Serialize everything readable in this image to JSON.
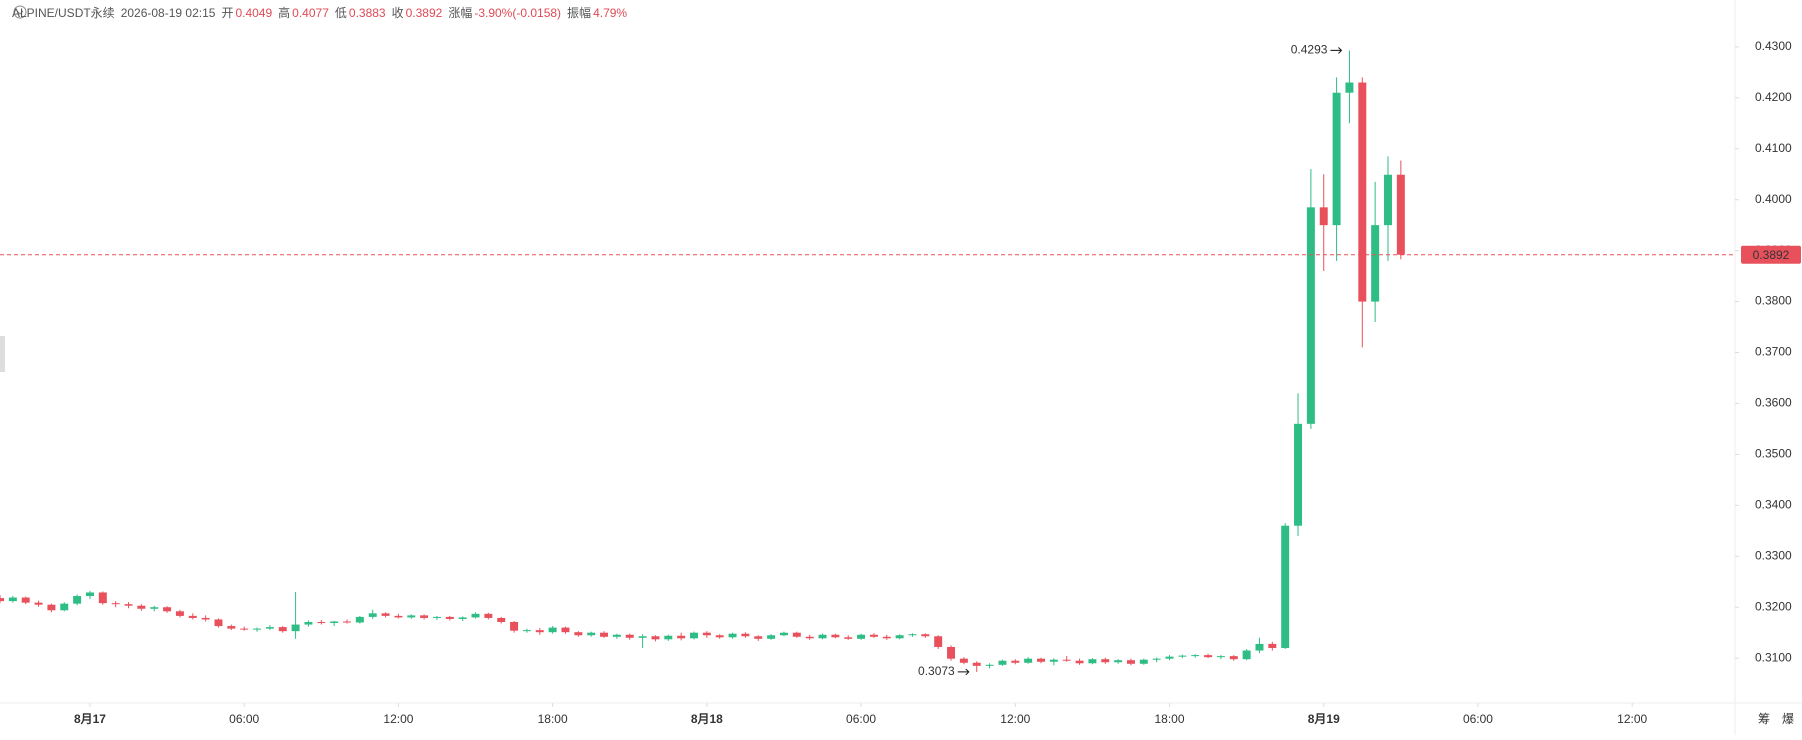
{
  "header": {
    "symbol": "ALPINE/USDT永续",
    "time": "2026-08-19 02:15",
    "fields": [
      {
        "key": "开",
        "value": "0.4049"
      },
      {
        "key": "高",
        "value": "0.4077"
      },
      {
        "key": "低",
        "value": "0.3883"
      },
      {
        "key": "收",
        "value": "0.3892"
      },
      {
        "key": "涨幅",
        "value": "-3.90%(-0.0158)"
      },
      {
        "key": "振幅",
        "value": "4.79%"
      }
    ]
  },
  "chart_data": {
    "type": "candlestick",
    "up_color": "#2ebd85",
    "down_color": "#e8505b",
    "xlim": [
      0,
      135
    ],
    "xticks": [
      {
        "value": 7,
        "label": "8月17"
      },
      {
        "value": 19,
        "label": "06:00"
      },
      {
        "value": 31,
        "label": "12:00"
      },
      {
        "value": 43,
        "label": "18:00"
      },
      {
        "value": 55,
        "label": "8月18"
      },
      {
        "value": 67,
        "label": "06:00"
      },
      {
        "value": 79,
        "label": "12:00"
      },
      {
        "value": 91,
        "label": "18:00"
      },
      {
        "value": 103,
        "label": "8月19"
      },
      {
        "value": 115,
        "label": "06:00"
      },
      {
        "value": 127,
        "label": "12:00"
      }
    ],
    "ylim": [
      0.3012,
      0.4392
    ],
    "yticks": [
      {
        "value": 0.31,
        "label": "0.3100"
      },
      {
        "value": 0.32,
        "label": "0.3200"
      },
      {
        "value": 0.33,
        "label": "0.3300"
      },
      {
        "value": 0.34,
        "label": "0.3400"
      },
      {
        "value": 0.35,
        "label": "0.3500"
      },
      {
        "value": 0.36,
        "label": "0.3600"
      },
      {
        "value": 0.37,
        "label": "0.3700"
      },
      {
        "value": 0.38,
        "label": "0.3800"
      },
      {
        "value": 0.39,
        "label": "0.3900"
      },
      {
        "value": 0.4,
        "label": "0.4000"
      },
      {
        "value": 0.41,
        "label": "0.4100"
      },
      {
        "value": 0.42,
        "label": "0.4200"
      },
      {
        "value": 0.43,
        "label": "0.4300"
      }
    ],
    "current_price": 0.3892,
    "annotations": [
      {
        "text": "0.4293",
        "candle": 105,
        "at": "high"
      },
      {
        "text": "0.3073",
        "candle": 76,
        "at": "low"
      }
    ],
    "side_icons": [
      "筹",
      "爆"
    ],
    "candles": [
      [
        0.3218,
        0.3224,
        0.3208,
        0.3212
      ],
      [
        0.3212,
        0.3222,
        0.3209,
        0.3219
      ],
      [
        0.3219,
        0.3221,
        0.3206,
        0.3209
      ],
      [
        0.3209,
        0.3213,
        0.3201,
        0.3205
      ],
      [
        0.3205,
        0.3207,
        0.319,
        0.3194
      ],
      [
        0.3194,
        0.321,
        0.3192,
        0.3207
      ],
      [
        0.3207,
        0.3225,
        0.3204,
        0.3222
      ],
      [
        0.3222,
        0.3232,
        0.3216,
        0.3229
      ],
      [
        0.3229,
        0.3231,
        0.3205,
        0.3208
      ],
      [
        0.3208,
        0.3212,
        0.32,
        0.3206
      ],
      [
        0.3206,
        0.321,
        0.3198,
        0.3203
      ],
      [
        0.3203,
        0.3206,
        0.3193,
        0.3197
      ],
      [
        0.3197,
        0.3203,
        0.3192,
        0.32
      ],
      [
        0.32,
        0.3202,
        0.3189,
        0.3192
      ],
      [
        0.3192,
        0.3195,
        0.318,
        0.3183
      ],
      [
        0.3183,
        0.3188,
        0.3176,
        0.3179
      ],
      [
        0.3179,
        0.3184,
        0.3172,
        0.3176
      ],
      [
        0.3176,
        0.3178,
        0.316,
        0.3163
      ],
      [
        0.3163,
        0.3166,
        0.3155,
        0.3158
      ],
      [
        0.3158,
        0.3162,
        0.3154,
        0.3157
      ],
      [
        0.3157,
        0.316,
        0.3152,
        0.3158
      ],
      [
        0.3158,
        0.3165,
        0.3155,
        0.3161
      ],
      [
        0.3161,
        0.3163,
        0.315,
        0.3153
      ],
      [
        0.3153,
        0.323,
        0.3138,
        0.3166
      ],
      [
        0.3166,
        0.3174,
        0.3162,
        0.3171
      ],
      [
        0.3171,
        0.3175,
        0.3166,
        0.3169
      ],
      [
        0.3169,
        0.3173,
        0.3163,
        0.3172
      ],
      [
        0.3172,
        0.3176,
        0.3168,
        0.317
      ],
      [
        0.317,
        0.3183,
        0.3168,
        0.3181
      ],
      [
        0.3181,
        0.3195,
        0.3177,
        0.3188
      ],
      [
        0.3188,
        0.319,
        0.318,
        0.3183
      ],
      [
        0.3183,
        0.3187,
        0.3178,
        0.318
      ],
      [
        0.318,
        0.3186,
        0.3177,
        0.3184
      ],
      [
        0.3184,
        0.3186,
        0.3176,
        0.3179
      ],
      [
        0.3179,
        0.3183,
        0.3175,
        0.3181
      ],
      [
        0.3181,
        0.3183,
        0.3174,
        0.3177
      ],
      [
        0.3177,
        0.3182,
        0.3173,
        0.318
      ],
      [
        0.318,
        0.319,
        0.3178,
        0.3187
      ],
      [
        0.3187,
        0.3189,
        0.3176,
        0.3179
      ],
      [
        0.3179,
        0.3181,
        0.3168,
        0.3171
      ],
      [
        0.3171,
        0.3173,
        0.315,
        0.3154
      ],
      [
        0.3154,
        0.3158,
        0.315,
        0.3155
      ],
      [
        0.3155,
        0.3159,
        0.3146,
        0.3151
      ],
      [
        0.3151,
        0.3163,
        0.3148,
        0.316
      ],
      [
        0.316,
        0.3162,
        0.3148,
        0.3151
      ],
      [
        0.3151,
        0.3153,
        0.3142,
        0.3145
      ],
      [
        0.3145,
        0.3152,
        0.3142,
        0.315
      ],
      [
        0.315,
        0.3153,
        0.314,
        0.3142
      ],
      [
        0.3142,
        0.3148,
        0.3138,
        0.3146
      ],
      [
        0.3146,
        0.3148,
        0.3136,
        0.314
      ],
      [
        0.314,
        0.3147,
        0.312,
        0.3143
      ],
      [
        0.3143,
        0.3145,
        0.3133,
        0.3137
      ],
      [
        0.3137,
        0.3146,
        0.3134,
        0.3144
      ],
      [
        0.3144,
        0.315,
        0.3135,
        0.3139
      ],
      [
        0.3139,
        0.3152,
        0.3137,
        0.315
      ],
      [
        0.315,
        0.3153,
        0.314,
        0.3145
      ],
      [
        0.3145,
        0.3147,
        0.3138,
        0.3141
      ],
      [
        0.3141,
        0.315,
        0.3138,
        0.3148
      ],
      [
        0.3148,
        0.3151,
        0.314,
        0.3143
      ],
      [
        0.3143,
        0.3145,
        0.3134,
        0.3138
      ],
      [
        0.3138,
        0.3147,
        0.3136,
        0.3145
      ],
      [
        0.3145,
        0.3152,
        0.3143,
        0.315
      ],
      [
        0.315,
        0.3152,
        0.314,
        0.3142
      ],
      [
        0.3142,
        0.3146,
        0.3136,
        0.3139
      ],
      [
        0.3139,
        0.3148,
        0.3137,
        0.3146
      ],
      [
        0.3146,
        0.3148,
        0.3139,
        0.3141
      ],
      [
        0.3141,
        0.3145,
        0.3136,
        0.3138
      ],
      [
        0.3138,
        0.3148,
        0.3136,
        0.3146
      ],
      [
        0.3146,
        0.3149,
        0.314,
        0.3142
      ],
      [
        0.3142,
        0.3146,
        0.3136,
        0.3139
      ],
      [
        0.3139,
        0.3147,
        0.3137,
        0.3145
      ],
      [
        0.3145,
        0.3149,
        0.3142,
        0.3147
      ],
      [
        0.3147,
        0.3149,
        0.314,
        0.3143
      ],
      [
        0.3143,
        0.3145,
        0.3118,
        0.3122
      ],
      [
        0.3122,
        0.3125,
        0.3095,
        0.3099
      ],
      [
        0.3099,
        0.3102,
        0.3088,
        0.3091
      ],
      [
        0.3091,
        0.3094,
        0.3073,
        0.3085
      ],
      [
        0.3085,
        0.309,
        0.308,
        0.3087
      ],
      [
        0.3087,
        0.3097,
        0.3085,
        0.3095
      ],
      [
        0.3095,
        0.3098,
        0.3088,
        0.3091
      ],
      [
        0.3091,
        0.3102,
        0.3089,
        0.3099
      ],
      [
        0.3099,
        0.3101,
        0.309,
        0.3093
      ],
      [
        0.3093,
        0.31,
        0.3086,
        0.3097
      ],
      [
        0.3097,
        0.3104,
        0.3093,
        0.3095
      ],
      [
        0.3095,
        0.3099,
        0.3087,
        0.309
      ],
      [
        0.309,
        0.31,
        0.3088,
        0.3098
      ],
      [
        0.3098,
        0.3101,
        0.3089,
        0.3092
      ],
      [
        0.3092,
        0.3098,
        0.3089,
        0.3096
      ],
      [
        0.3096,
        0.3099,
        0.3086,
        0.3089
      ],
      [
        0.3089,
        0.3099,
        0.3087,
        0.3097
      ],
      [
        0.3097,
        0.3101,
        0.3092,
        0.3099
      ],
      [
        0.3099,
        0.3106,
        0.3096,
        0.3103
      ],
      [
        0.3103,
        0.3107,
        0.31,
        0.3105
      ],
      [
        0.3105,
        0.3108,
        0.3101,
        0.3106
      ],
      [
        0.3106,
        0.3109,
        0.31,
        0.3102
      ],
      [
        0.3102,
        0.3106,
        0.3098,
        0.3104
      ],
      [
        0.3104,
        0.3106,
        0.3095,
        0.3098
      ],
      [
        0.3098,
        0.3118,
        0.3096,
        0.3115
      ],
      [
        0.3115,
        0.314,
        0.311,
        0.3128
      ],
      [
        0.3128,
        0.3132,
        0.3115,
        0.312
      ],
      [
        0.312,
        0.3365,
        0.3118,
        0.336
      ],
      [
        0.336,
        0.362,
        0.334,
        0.356
      ],
      [
        0.356,
        0.406,
        0.355,
        0.3985
      ],
      [
        0.3985,
        0.405,
        0.386,
        0.395
      ],
      [
        0.395,
        0.424,
        0.388,
        0.421
      ],
      [
        0.421,
        0.4293,
        0.415,
        0.423
      ],
      [
        0.423,
        0.424,
        0.371,
        0.38
      ],
      [
        0.38,
        0.4035,
        0.376,
        0.395
      ],
      [
        0.395,
        0.4085,
        0.388,
        0.4049
      ],
      [
        0.4049,
        0.4077,
        0.3883,
        0.3892
      ]
    ]
  }
}
